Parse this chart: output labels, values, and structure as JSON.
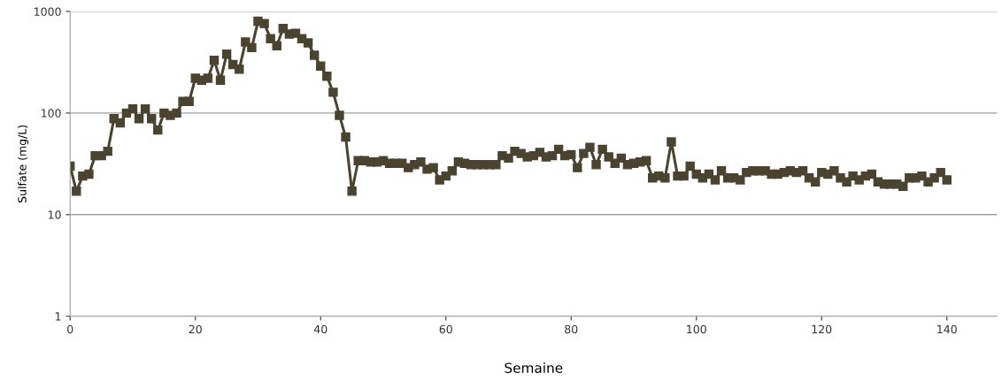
{
  "chart_data": {
    "type": "line",
    "xlabel": "Semaine",
    "ylabel": "Sulfate (mg/L)",
    "log": "y",
    "grid": "y",
    "marker": "square",
    "line_style": "solid",
    "xlim": [
      0,
      148
    ],
    "xticks": [
      0,
      20,
      40,
      60,
      80,
      100,
      120,
      140
    ],
    "ylim": [
      1,
      1000
    ],
    "yticks": [
      1,
      10,
      100,
      1000
    ],
    "x": [
      0,
      1,
      2,
      3,
      4,
      5,
      6,
      7,
      8,
      9,
      10,
      11,
      12,
      13,
      14,
      15,
      16,
      17,
      18,
      19,
      20,
      21,
      22,
      23,
      24,
      25,
      26,
      27,
      28,
      29,
      30,
      31,
      32,
      33,
      34,
      35,
      36,
      37,
      38,
      39,
      40,
      41,
      42,
      43,
      44,
      45,
      46,
      47,
      48,
      49,
      50,
      51,
      52,
      53,
      54,
      55,
      56,
      57,
      58,
      59,
      60,
      61,
      62,
      63,
      64,
      65,
      66,
      67,
      68,
      69,
      70,
      71,
      72,
      73,
      74,
      75,
      76,
      77,
      78,
      79,
      80,
      81,
      82,
      83,
      84,
      85,
      86,
      87,
      88,
      89,
      90,
      91,
      92,
      93,
      94,
      95,
      96,
      97,
      98,
      99,
      100,
      101,
      102,
      103,
      104,
      105,
      106,
      107,
      108,
      109,
      110,
      111,
      112,
      113,
      114,
      115,
      116,
      117,
      118,
      119,
      120,
      121,
      122,
      123,
      124,
      125,
      126,
      127,
      128,
      129,
      130,
      131,
      132,
      133,
      134,
      135,
      136,
      137,
      138,
      139,
      140
    ],
    "series": [
      {
        "color": "#4a4330",
        "values": [
          30,
          17,
          24,
          25,
          38,
          38,
          42,
          88,
          80,
          100,
          110,
          88,
          110,
          88,
          68,
          100,
          95,
          100,
          130,
          130,
          220,
          210,
          220,
          330,
          210,
          380,
          300,
          270,
          500,
          440,
          800,
          760,
          540,
          460,
          680,
          600,
          610,
          540,
          490,
          370,
          290,
          230,
          160,
          95,
          58,
          17,
          34,
          34,
          33,
          33,
          34,
          32,
          32,
          32,
          29,
          31,
          33,
          28,
          29,
          22,
          24,
          27,
          33,
          32,
          31,
          31,
          31,
          31,
          31,
          38,
          36,
          42,
          40,
          37,
          38,
          41,
          37,
          38,
          44,
          38,
          39,
          29,
          40,
          46,
          31,
          44,
          37,
          32,
          36,
          31,
          32,
          33,
          34,
          23,
          24,
          23,
          52,
          24,
          24,
          30,
          25,
          23,
          25,
          22,
          27,
          23,
          23,
          22,
          26,
          27,
          27,
          27,
          25,
          25,
          26,
          27,
          26,
          27,
          23,
          21,
          26,
          25,
          27,
          23,
          21,
          24,
          22,
          24,
          25,
          21,
          20,
          20,
          20,
          19,
          23,
          23,
          24,
          21,
          23,
          26,
          22
        ]
      }
    ]
  }
}
